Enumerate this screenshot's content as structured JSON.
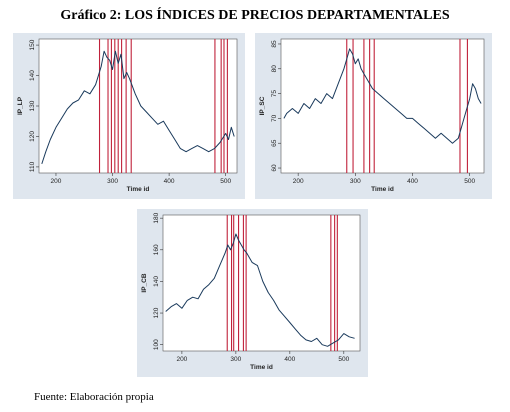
{
  "title": "Gráfico 2: LOS ÍNDICES DE PRECIOS DEPARTAMENTALES",
  "source": "Fuente: Elaboración propia",
  "colors": {
    "panel_bg": "#dfe6ee",
    "plot_bg": "#ffffff",
    "series": "#1a3a5c",
    "vline": "#c0223b"
  },
  "chart_data": [
    {
      "type": "line",
      "xlabel": "Time id",
      "ylabel": "IP_LP",
      "xlim": [
        170,
        520
      ],
      "ylim": [
        108,
        152
      ],
      "xticks": [
        200,
        300,
        400,
        500
      ],
      "yticks": [
        110,
        120,
        130,
        140,
        150
      ],
      "vlines": [
        277,
        292,
        298,
        304,
        310,
        316,
        324,
        333,
        481,
        492,
        497,
        503
      ],
      "series": [
        {
          "x": [
            175,
            182,
            190,
            200,
            210,
            220,
            230,
            240,
            250,
            260,
            270,
            280,
            285,
            290,
            295,
            300,
            305,
            310,
            315,
            320,
            325,
            330,
            340,
            350,
            360,
            370,
            380,
            390,
            400,
            410,
            420,
            430,
            440,
            450,
            460,
            470,
            480,
            490,
            500,
            505,
            510,
            515
          ],
          "values": [
            111,
            115,
            119,
            123,
            126,
            129,
            131,
            132,
            135,
            134,
            137,
            143,
            148,
            146,
            145,
            142,
            148,
            144,
            147,
            139,
            141,
            139,
            134,
            130,
            128,
            126,
            124,
            125,
            122,
            119,
            116,
            115,
            116,
            117,
            116,
            115,
            116,
            118,
            121,
            119,
            123,
            120
          ]
        }
      ]
    },
    {
      "type": "line",
      "xlabel": "Time id",
      "ylabel": "IP_SC",
      "xlim": [
        170,
        525
      ],
      "ylim": [
        59,
        86
      ],
      "xticks": [
        200,
        300,
        400,
        500
      ],
      "yticks": [
        60,
        65,
        70,
        75,
        80,
        85
      ],
      "vlines": [
        285,
        296,
        315,
        325,
        333,
        483,
        496
      ],
      "series": [
        {
          "x": [
            175,
            180,
            190,
            200,
            210,
            220,
            230,
            240,
            250,
            260,
            270,
            280,
            285,
            290,
            295,
            300,
            305,
            310,
            315,
            320,
            330,
            340,
            350,
            360,
            370,
            380,
            390,
            400,
            410,
            420,
            430,
            440,
            450,
            460,
            470,
            480,
            490,
            500,
            505,
            510,
            515,
            520
          ],
          "values": [
            70,
            71,
            72,
            71,
            73,
            72,
            74,
            73,
            75,
            74,
            77,
            80,
            82,
            84,
            83,
            81,
            82,
            80,
            79,
            78,
            76,
            75,
            74,
            73,
            72,
            71,
            70,
            70,
            69,
            68,
            67,
            66,
            67,
            66,
            65,
            66,
            70,
            74,
            77,
            76,
            74,
            73
          ]
        }
      ]
    },
    {
      "type": "line",
      "xlabel": "Time id",
      "ylabel": "IP_CB",
      "xlim": [
        165,
        530
      ],
      "ylim": [
        96,
        182
      ],
      "xticks": [
        200,
        300,
        400,
        500
      ],
      "yticks": [
        100,
        120,
        140,
        160,
        180
      ],
      "vlines": [
        284,
        292,
        296,
        305,
        314,
        319,
        476,
        483,
        488
      ],
      "series": [
        {
          "x": [
            170,
            180,
            190,
            200,
            210,
            220,
            230,
            240,
            250,
            260,
            270,
            280,
            285,
            290,
            295,
            300,
            305,
            310,
            315,
            320,
            330,
            340,
            350,
            360,
            370,
            380,
            390,
            400,
            410,
            420,
            430,
            440,
            450,
            460,
            470,
            480,
            490,
            500,
            510,
            520
          ],
          "values": [
            121,
            124,
            126,
            123,
            128,
            130,
            129,
            135,
            138,
            142,
            150,
            158,
            163,
            160,
            164,
            170,
            166,
            163,
            160,
            158,
            152,
            150,
            140,
            133,
            128,
            122,
            118,
            114,
            110,
            106,
            103,
            102,
            104,
            100,
            99,
            101,
            103,
            107,
            105,
            104
          ]
        }
      ]
    }
  ]
}
